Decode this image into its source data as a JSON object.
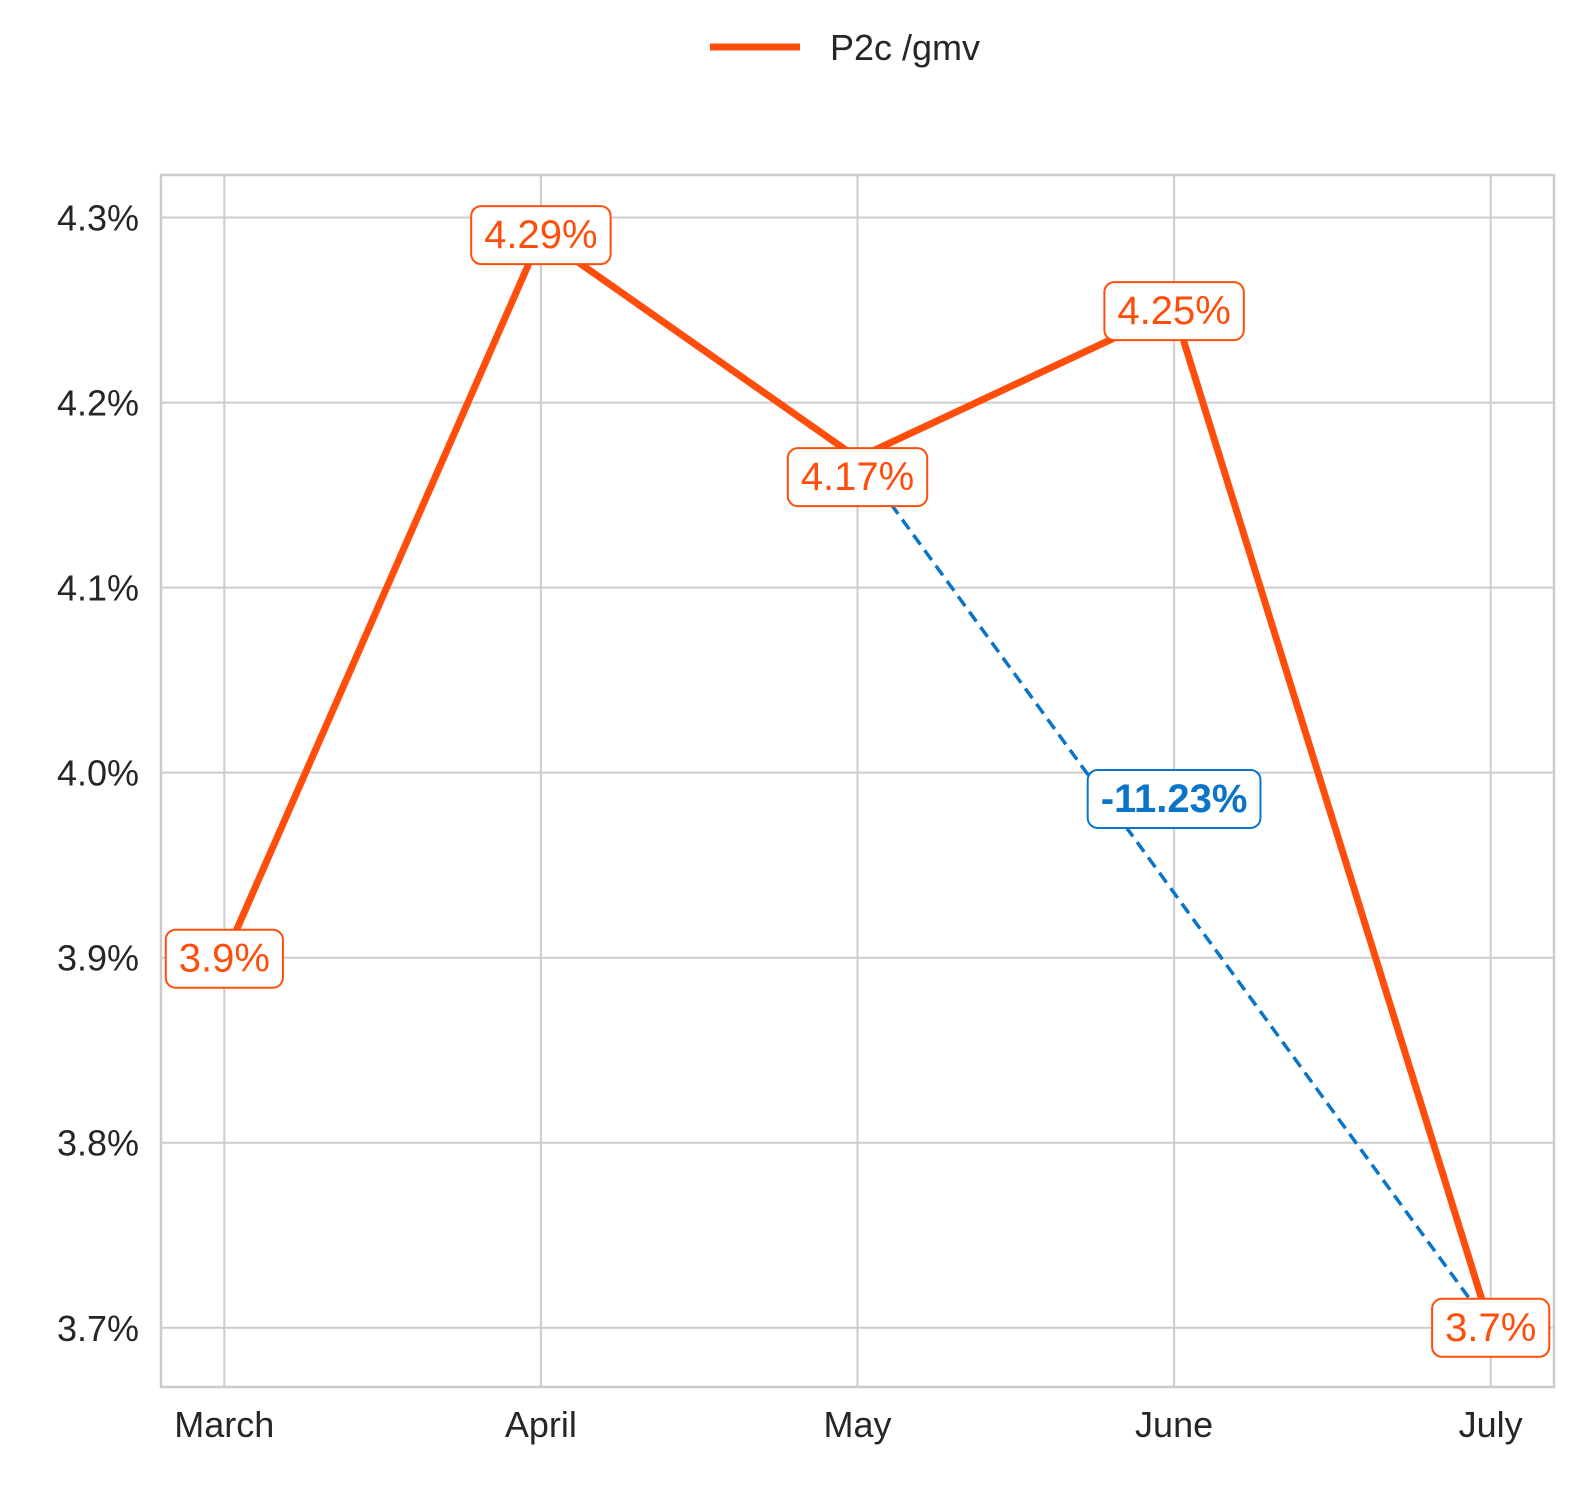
{
  "chart_data": {
    "type": "line",
    "title": "",
    "xlabel": "",
    "ylabel": "",
    "categories": [
      "March",
      "April",
      "May",
      "June",
      "July"
    ],
    "series": [
      {
        "name": "P2c /gmv",
        "values": [
          3.9,
          4.29,
          4.17,
          4.25,
          3.7
        ],
        "value_labels": [
          "3.9%",
          "4.29%",
          "4.17%",
          "4.25%",
          "3.7%"
        ],
        "color": "#FF4E0B"
      }
    ],
    "yticks": [
      3.7,
      3.8,
      3.9,
      4.0,
      4.1,
      4.2,
      4.3
    ],
    "ytick_labels": [
      "3.7%",
      "3.8%",
      "3.9%",
      "4.0%",
      "4.1%",
      "4.2%",
      "4.3%"
    ],
    "ylim": [
      3.668,
      4.323
    ],
    "xlim": [
      -0.2,
      4.2
    ],
    "grid": true,
    "legend_position": "top-center",
    "annotation": {
      "from_category": "May",
      "to_category": "July",
      "from_value": 4.17,
      "to_value": 3.7,
      "label": "-11.23%",
      "color": "#0A75C8",
      "style": "dashed"
    }
  }
}
